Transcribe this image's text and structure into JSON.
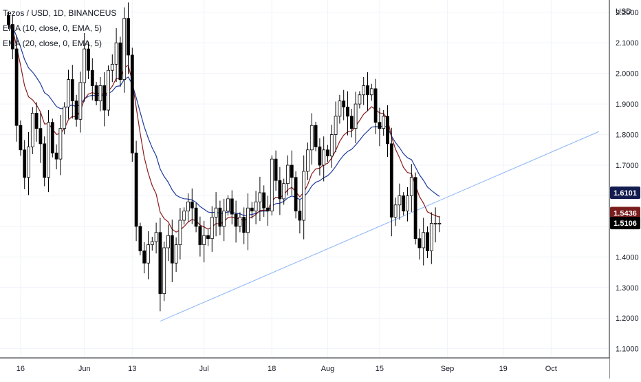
{
  "chart_data": {
    "type": "candlestick",
    "symbol_title": "Tezos / USD, 1D, BINANCEUS",
    "indicators": [
      "EMA (10, close, 0, EMA, 5)",
      "EMA (20, close, 0, EMA, 5)"
    ],
    "currency_label": "USD",
    "y_axis": {
      "range": [
        1.07,
        2.24
      ],
      "ticks": [
        "2.2000",
        "2.1000",
        "2.0000",
        "1.9000",
        "1.8000",
        "1.7000",
        "1.6000",
        "1.5000",
        "1.4000",
        "1.3000",
        "1.2000",
        "1.1000"
      ]
    },
    "x_axis": {
      "ticks": [
        {
          "label": "16",
          "index": 3
        },
        {
          "label": "Jun",
          "index": 19
        },
        {
          "label": "13",
          "index": 31
        },
        {
          "label": "Jul",
          "index": 49
        },
        {
          "label": "18",
          "index": 66
        },
        {
          "label": "Aug",
          "index": 80
        },
        {
          "label": "15",
          "index": 93
        },
        {
          "label": "Sep",
          "index": 110
        },
        {
          "label": "19",
          "index": 124
        },
        {
          "label": "Oct",
          "index": 136
        }
      ]
    },
    "price_labels": [
      {
        "text": "1.6101",
        "value": 1.6101,
        "color": "#131c4e"
      },
      {
        "text": "1.5436",
        "value": 1.5436,
        "color": "#7a1d1d"
      },
      {
        "text": "1.5106",
        "value": 1.5106,
        "color": "#000000"
      }
    ],
    "trendline": {
      "from": {
        "index": 38,
        "value": 1.19
      },
      "to": {
        "index": 148,
        "value": 1.81
      },
      "color": "#8ab4f8"
    },
    "colors": {
      "up": "#ffffff",
      "down": "#000000",
      "wick": "#000000",
      "ema10": "#8b1a1a",
      "ema20": "#1c3a9e",
      "grid": "#f0f3fa",
      "axis_text": "#131722"
    },
    "closes": [
      2.16,
      2.08,
      1.83,
      1.75,
      1.66,
      1.76,
      1.87,
      1.82,
      1.77,
      1.66,
      1.84,
      1.74,
      1.72,
      1.82,
      1.89,
      1.98,
      1.91,
      1.85,
      1.97,
      2.08,
      2.01,
      1.96,
      1.91,
      1.96,
      1.88,
      2.01,
      2.03,
      2.1,
      1.98,
      2.18,
      2.06,
      1.74,
      1.5,
      1.42,
      1.38,
      1.44,
      1.45,
      1.48,
      1.28,
      1.43,
      1.47,
      1.38,
      1.44,
      1.52,
      1.55,
      1.58,
      1.56,
      1.5,
      1.44,
      1.47,
      1.46,
      1.53,
      1.56,
      1.5,
      1.55,
      1.59,
      1.54,
      1.5,
      1.53,
      1.48,
      1.56,
      1.55,
      1.58,
      1.61,
      1.56,
      1.55,
      1.72,
      1.65,
      1.59,
      1.64,
      1.7,
      1.66,
      1.55,
      1.52,
      1.68,
      1.75,
      1.83,
      1.76,
      1.7,
      1.75,
      1.73,
      1.8,
      1.86,
      1.91,
      1.89,
      1.86,
      1.82,
      1.9,
      1.93,
      1.96,
      1.93,
      1.95,
      1.84,
      1.82,
      1.86,
      1.77,
      1.53,
      1.57,
      1.6,
      1.55,
      1.6,
      1.66,
      1.46,
      1.43,
      1.48,
      1.42,
      1.51,
      1.51,
      1.51
    ]
  }
}
